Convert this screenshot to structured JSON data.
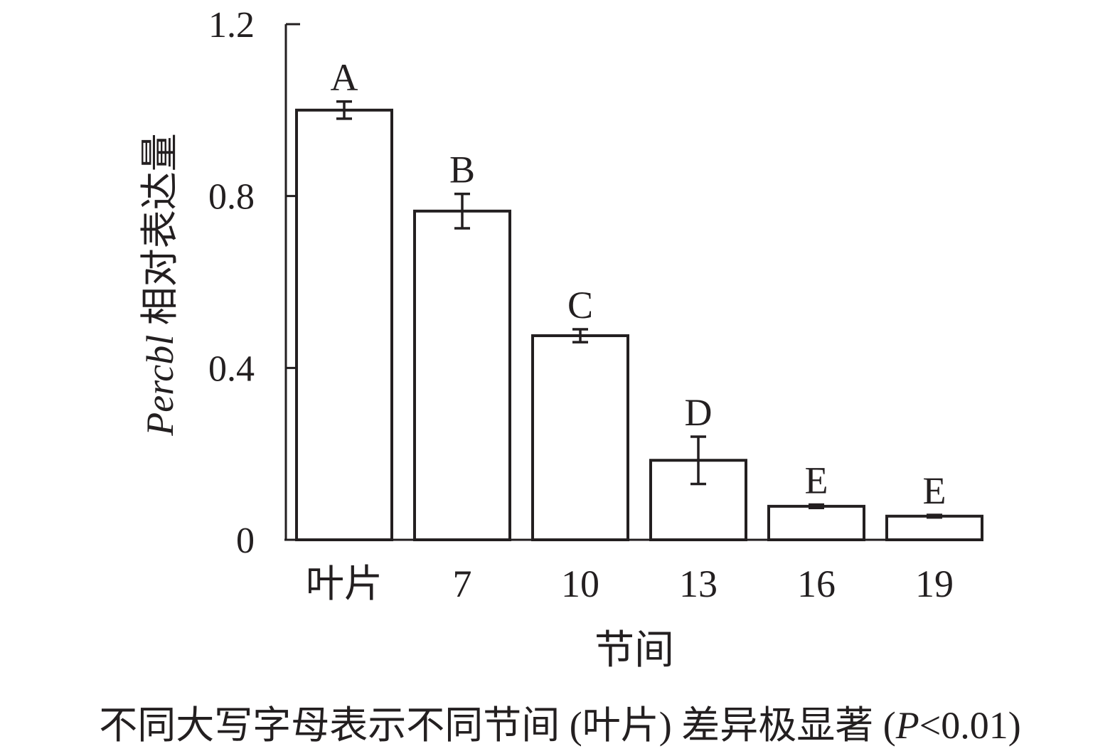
{
  "chart_data": {
    "type": "bar",
    "xlabel": "节间",
    "ylabel_italic": "Percbl",
    "ylabel_rest": "相对表达量",
    "categories": [
      "叶片",
      "7",
      "10",
      "13",
      "16",
      "19"
    ],
    "values": [
      1.0,
      0.765,
      0.475,
      0.185,
      0.078,
      0.055
    ],
    "errors": [
      0.02,
      0.04,
      0.015,
      0.055,
      0.004,
      0.003
    ],
    "significance_letters": [
      "A",
      "B",
      "C",
      "D",
      "E",
      "E"
    ],
    "ylim": [
      0,
      1.2
    ],
    "yticks": [
      0,
      0.4,
      0.8,
      1.2
    ],
    "ytick_labels": [
      "0",
      "0.4",
      "0.8",
      "1.2"
    ],
    "grid": false,
    "legend": false,
    "bar_fill": "#ffffff",
    "bar_stroke": "#231f20"
  },
  "caption": {
    "prefix": "不同大写字母表示不同节间 (叶片) 差异极显著 (",
    "p_symbol": "P",
    "suffix": "<0.01)"
  }
}
